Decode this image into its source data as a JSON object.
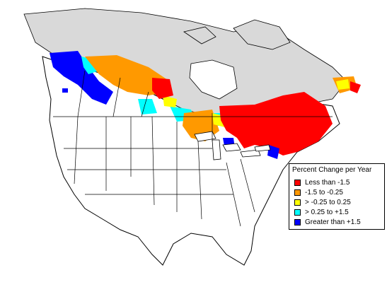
{
  "legend": {
    "title": "Percent Change per Year",
    "items": [
      {
        "label": "Less than -1.5",
        "color": "#ff0000"
      },
      {
        "label": "-1.5 to -0.25",
        "color": "#ff9900"
      },
      {
        "label": "> -0.25 to 0.25",
        "color": "#ffff00"
      },
      {
        "label": "> 0.25 to +1.5",
        "color": "#00ffff"
      },
      {
        "label": "Greater than +1.5",
        "color": "#0000ff"
      }
    ]
  },
  "colors": {
    "unsurveyed": "#d9d9d9",
    "land": "#ffffff",
    "boundary": "#000000"
  }
}
